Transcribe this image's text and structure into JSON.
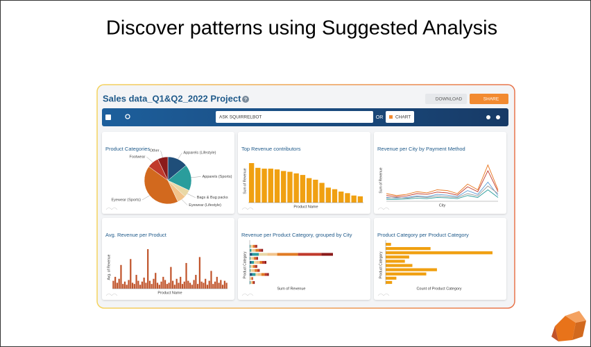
{
  "slide_title": "Discover patterns using Suggested Analysis",
  "app": {
    "project_title": "Sales data_Q1&Q2_2022 Project",
    "help_icon": "?",
    "download": "DOWNLOAD",
    "share": "SHARE",
    "ask": "ASK SQUIRRELBOT",
    "or": "OR",
    "chart": "CHART"
  },
  "cards": [
    {
      "type": "pie",
      "title": "Product Categories",
      "categories": [
        "Apparels (Lifestyle)",
        "Apparels (Sports)",
        "Bags & Bug packs",
        "Eyewear (Lifestyle)",
        "Eyewear (Sports)",
        "Footwear",
        "Other"
      ],
      "values": [
        14,
        18,
        5,
        6,
        42,
        8,
        7
      ],
      "colors": [
        "#1f4e79",
        "#2a9d9c",
        "#e9d8a6",
        "#f2c38b",
        "#d2691e",
        "#c0392b",
        "#8b1a1a"
      ]
    },
    {
      "type": "bar",
      "title": "Top Revenue contributors",
      "x_label": "Product Name",
      "y_label": "Sum of Revenue",
      "color": "#f0a011",
      "ylim": [
        0,
        100
      ],
      "values": [
        100,
        88,
        86,
        86,
        84,
        80,
        78,
        74,
        70,
        62,
        58,
        50,
        38,
        34,
        28,
        24,
        18,
        16
      ]
    },
    {
      "type": "line",
      "title": "Revenue per City by Payment Method",
      "x_label": "City",
      "y_label": "Sum of Revenue",
      "ylim": [
        0,
        100
      ],
      "series": [
        {
          "color": "#e8731a",
          "values": [
            20,
            15,
            18,
            25,
            22,
            30,
            28,
            20,
            45,
            30,
            95,
            30
          ]
        },
        {
          "color": "#c0392b",
          "values": [
            15,
            12,
            14,
            20,
            18,
            24,
            22,
            16,
            38,
            25,
            80,
            25
          ]
        },
        {
          "color": "#5b9bd5",
          "values": [
            10,
            8,
            10,
            14,
            12,
            18,
            16,
            12,
            28,
            18,
            50,
            15
          ]
        },
        {
          "color": "#2a9d9c",
          "values": [
            5,
            5,
            6,
            8,
            7,
            10,
            9,
            7,
            15,
            10,
            30,
            10
          ]
        },
        {
          "color": "#9a9a9a",
          "values": [
            8,
            10,
            8,
            12,
            10,
            14,
            12,
            10,
            20,
            14,
            40,
            20
          ]
        }
      ]
    },
    {
      "type": "bar",
      "title": "Avg. Revenue per Product",
      "x_label": "Product Name",
      "y_label": "Avg. of Revenue",
      "color": "#c0532a",
      "ylim": [
        0,
        100
      ],
      "values": [
        20,
        30,
        15,
        25,
        60,
        12,
        18,
        10,
        22,
        75,
        15,
        12,
        35,
        20,
        10,
        18,
        28,
        15,
        100,
        20,
        12,
        25,
        40,
        15,
        10,
        18,
        30,
        22,
        12,
        15,
        55,
        20,
        10,
        25,
        15,
        30,
        12,
        18,
        65,
        20,
        15,
        10,
        22,
        35,
        12,
        80,
        18,
        15,
        25,
        10,
        20,
        45,
        12,
        18,
        30,
        15,
        22,
        10,
        20,
        15
      ]
    },
    {
      "type": "stacked-hbar",
      "title": "Revenue per Product Category, grouped by City",
      "x_label": "Sum of Revenue",
      "y_label": "Product Category",
      "xlim": [
        0,
        100
      ],
      "series": [
        {
          "color": "#1f4e79",
          "values": [
            0,
            0,
            3,
            0,
            2,
            0,
            0,
            3,
            0,
            0
          ]
        },
        {
          "color": "#2a9d9c",
          "values": [
            1,
            2,
            8,
            1,
            3,
            1,
            1,
            4,
            0,
            1
          ]
        },
        {
          "color": "#e9d8a6",
          "values": [
            1,
            2,
            10,
            2,
            3,
            1,
            2,
            3,
            1,
            1
          ]
        },
        {
          "color": "#f2c38b",
          "values": [
            2,
            3,
            12,
            2,
            4,
            2,
            3,
            4,
            1,
            1
          ]
        },
        {
          "color": "#e07b24",
          "values": [
            2,
            4,
            25,
            2,
            3,
            2,
            3,
            4,
            1,
            1
          ]
        },
        {
          "color": "#c0392b",
          "values": [
            2,
            3,
            28,
            2,
            3,
            2,
            2,
            3,
            1,
            1
          ]
        },
        {
          "color": "#8b1a1a",
          "values": [
            1,
            2,
            14,
            1,
            2,
            1,
            1,
            2,
            0,
            1
          ]
        }
      ]
    },
    {
      "type": "hbar",
      "title": "Product Category per Product Category",
      "x_label": "Count of Product Category",
      "y_label": "Product Category",
      "color": "#f0a011",
      "xlim": [
        0,
        100
      ],
      "values": [
        5,
        42,
        100,
        22,
        18,
        25,
        48,
        38,
        10,
        6
      ]
    }
  ]
}
